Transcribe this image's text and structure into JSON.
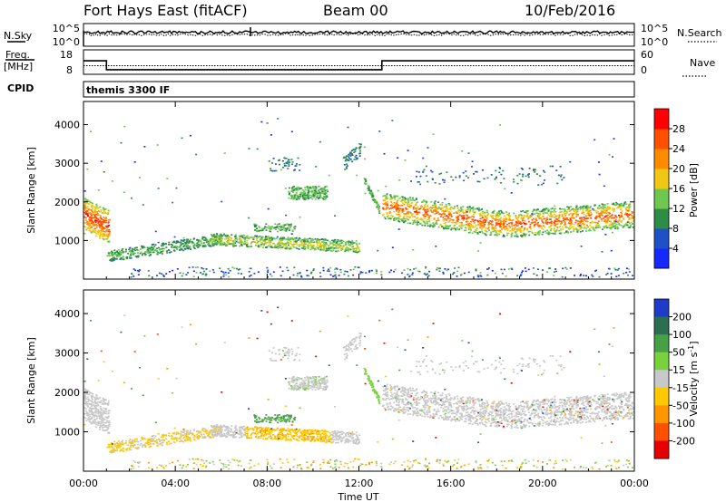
{
  "header": {
    "station": "Fort Hays East (fitACF)",
    "beam": "Beam 00",
    "date": "10/Feb/2016"
  },
  "nsky_panel": {
    "left_label": "N.Sky",
    "left_ticks": [
      "10^5",
      "10^0"
    ],
    "right_ticks": [
      "10^5",
      "10^0"
    ],
    "right_label": "N.Search"
  },
  "freq_panel": {
    "left_label_1": "Freq.",
    "left_label_2": "[MHz]",
    "left_ticks": [
      "18",
      "8"
    ],
    "right_ticks": [
      "60",
      "0"
    ],
    "right_label": "Nave",
    "freq_steps": [
      {
        "t_start": 0.0,
        "t_end": 1.0,
        "mhz": 16.2
      },
      {
        "t_start": 1.0,
        "t_end": 13.0,
        "mhz": 10.4
      },
      {
        "t_start": 13.0,
        "t_end": 24.0,
        "mhz": 16.2
      }
    ],
    "nave_level": 0.35
  },
  "cpid": {
    "label": "CPID",
    "program": "themis 3300 IF"
  },
  "chart_data": [
    {
      "type": "heatmap",
      "name": "Power",
      "ylabel": "Slant Range [km]",
      "xlabel": "Time UT",
      "x_unit": "hours UT",
      "xlim": [
        0,
        24
      ],
      "ylim": [
        0,
        4600
      ],
      "yticks": [
        "1000",
        "2000",
        "3000",
        "4000"
      ],
      "xticks": [
        "00:00",
        "04:00",
        "08:00",
        "12:00",
        "16:00",
        "20:00",
        "00:00"
      ],
      "colorbar": {
        "label": "Power [dB]",
        "ticks": [
          "4",
          "8",
          "12",
          "16",
          "20",
          "24",
          "28"
        ],
        "colors": [
          "#1428ff",
          "#1e50c8",
          "#2d8c46",
          "#6ec850",
          "#f0c814",
          "#ff8c00",
          "#ff5000",
          "#ff0000"
        ]
      },
      "features": [
        {
          "region": "left-edge band",
          "t": [
            0.0,
            1.0
          ],
          "range_km": [
            1200,
            2400
          ],
          "power_db": 24
        },
        {
          "region": "midday E-region band",
          "t": [
            1.5,
            12.0
          ],
          "range_km": [
            500,
            1300
          ],
          "power_db": 12
        },
        {
          "region": "F-region patch",
          "t": [
            9.0,
            10.5
          ],
          "range_km": [
            2000,
            2500
          ],
          "power_db": 10
        },
        {
          "region": "evening F-region band",
          "t": [
            13.0,
            24.0
          ],
          "range_km": [
            1100,
            2200
          ],
          "power_db": 24
        }
      ]
    },
    {
      "type": "heatmap",
      "name": "Velocity",
      "ylabel": "Slant Range [km]",
      "xlabel": "Time UT",
      "x_unit": "hours UT",
      "xlim": [
        0,
        24
      ],
      "ylim": [
        0,
        4600
      ],
      "yticks": [
        "1000",
        "2000",
        "3000",
        "4000"
      ],
      "xticks": [
        "00:00",
        "04:00",
        "08:00",
        "12:00",
        "16:00",
        "20:00",
        "00:00"
      ],
      "colorbar": {
        "label": "Velocity [m s^-1]",
        "ticks": [
          "200",
          "100",
          "50",
          "15",
          "-15",
          "-50",
          "-100",
          "-200"
        ],
        "colors": [
          "#1e3cc8",
          "#2d6e50",
          "#46a046",
          "#78d23c",
          "#c8c8c8",
          "#ffc800",
          "#ff9600",
          "#ff5000",
          "#e60000"
        ]
      },
      "features": [
        {
          "region": "ground scatter morning",
          "t": [
            1.0,
            6.0
          ],
          "range_km": [
            600,
            1000
          ],
          "velocity_ms": -30
        },
        {
          "region": "eastward flow",
          "t": [
            7.0,
            11.0
          ],
          "range_km": [
            800,
            1100
          ],
          "velocity_ms": -60
        },
        {
          "region": "evening ground scatter",
          "t": [
            13.0,
            24.0
          ],
          "range_km": [
            1100,
            2200
          ],
          "velocity_ms": 0
        }
      ]
    }
  ]
}
